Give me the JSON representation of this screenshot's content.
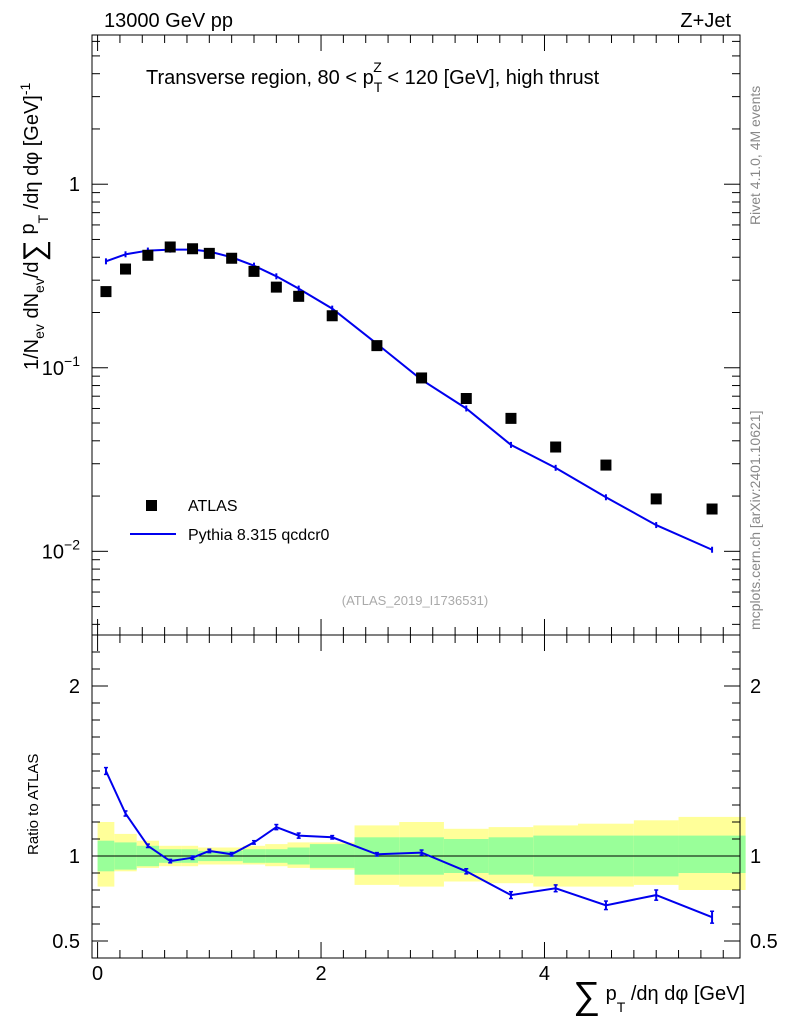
{
  "header": {
    "energy_label": "13000 GeV pp",
    "process_label": "Z+Jet"
  },
  "side_text": {
    "rivet": "Rivet 4.1.0,  4M events",
    "mcplots": "mcplots.cern.ch [arXiv:2401.10621]"
  },
  "colors": {
    "data": "#000000",
    "mc": "#0000ee",
    "band_inner": "#99ff99",
    "band_outer": "#ffff99"
  },
  "chart_data": [
    {
      "type": "scatter",
      "panel": "main",
      "title": "Transverse region, 80 < p_T^Z < 120 [GeV], high thrust",
      "title_parts": {
        "pre": "Transverse region, 80 < p",
        "sup": "Z",
        "sub": "T",
        "post": " < 120 [GeV], high thrust"
      },
      "ylabel": "1/N_ev dN_ev/d∑p_T/dη dφ [GeV]^-1",
      "ylabel_parts": {
        "a": "1/N",
        "a_sub": "ev",
        "b": " dN",
        "b_sub": "ev",
        "c": "/d",
        "sum": "∑",
        "d": " p",
        "d_sub": "T",
        "e": " /dη dφ  [GeV]",
        "e_sup": "-1"
      },
      "yscale": "log",
      "ylim": [
        0.0035,
        6.5
      ],
      "xlim": [
        -0.05,
        5.75
      ],
      "ytick_labels": [
        {
          "value": 1,
          "mant": "1",
          "exp": ""
        },
        {
          "value": 0.1,
          "mant": "10",
          "exp": "−1"
        },
        {
          "value": 0.01,
          "mant": "10",
          "exp": "−2"
        }
      ],
      "watermark": "(ATLAS_2019_I1736531)",
      "legend": [
        {
          "name": "ATLAS",
          "style": "marker"
        },
        {
          "name": "Pythia 8.315 qcdcr0",
          "style": "line"
        }
      ],
      "series": [
        {
          "name": "ATLAS",
          "x": [
            0.075,
            0.25,
            0.45,
            0.65,
            0.85,
            1.0,
            1.2,
            1.4,
            1.6,
            1.8,
            2.1,
            2.5,
            2.9,
            3.3,
            3.7,
            4.1,
            4.55,
            5.0,
            5.5
          ],
          "y": [
            0.26,
            0.345,
            0.41,
            0.455,
            0.445,
            0.42,
            0.395,
            0.335,
            0.275,
            0.245,
            0.192,
            0.132,
            0.088,
            0.068,
            0.053,
            0.037,
            0.0295,
            0.0193,
            0.017
          ]
        },
        {
          "name": "Pythia 8.315 qcdcr0",
          "x": [
            0.075,
            0.25,
            0.45,
            0.65,
            0.85,
            1.0,
            1.2,
            1.4,
            1.6,
            1.8,
            2.1,
            2.5,
            2.9,
            3.3,
            3.7,
            4.1,
            4.55,
            5.0,
            5.5
          ],
          "y": [
            0.38,
            0.415,
            0.435,
            0.44,
            0.44,
            0.43,
            0.4,
            0.36,
            0.315,
            0.27,
            0.21,
            0.135,
            0.086,
            0.06,
            0.038,
            0.0285,
            0.0197,
            0.0139,
            0.0102
          ]
        }
      ]
    },
    {
      "type": "line",
      "panel": "ratio",
      "ylabel": "Ratio to ATLAS",
      "xlabel": "∑p_T/dη dφ [GeV]",
      "xlabel_parts": {
        "sum": "∑",
        "p": " p",
        "sub": "T",
        "rest": " /dη dφ [GeV]"
      },
      "ylim": [
        0.4,
        2.3
      ],
      "xlim": [
        -0.05,
        5.75
      ],
      "ytick_labels": [
        {
          "value": 2,
          "text": "2"
        },
        {
          "value": 1,
          "text": "1"
        },
        {
          "value": 0.5,
          "text": "0.5"
        }
      ],
      "xtick_labels": [
        {
          "value": 0,
          "text": "0"
        },
        {
          "value": 2,
          "text": "2"
        },
        {
          "value": 4,
          "text": "4"
        }
      ],
      "reference_line": 1,
      "bands": {
        "edges": [
          0.0,
          0.15,
          0.35,
          0.55,
          0.75,
          0.9,
          1.1,
          1.3,
          1.5,
          1.7,
          1.9,
          2.3,
          2.7,
          3.1,
          3.5,
          3.9,
          4.3,
          4.8,
          5.2,
          5.8
        ],
        "inner_lo": [
          0.91,
          0.92,
          0.94,
          0.96,
          0.96,
          0.97,
          0.97,
          0.96,
          0.96,
          0.95,
          0.93,
          0.89,
          0.89,
          0.9,
          0.89,
          0.88,
          0.88,
          0.88,
          0.9
        ],
        "inner_hi": [
          1.09,
          1.08,
          1.06,
          1.04,
          1.04,
          1.03,
          1.03,
          1.04,
          1.04,
          1.05,
          1.07,
          1.11,
          1.11,
          1.1,
          1.11,
          1.12,
          1.12,
          1.12,
          1.12
        ],
        "outer_lo": [
          0.82,
          0.91,
          0.93,
          0.94,
          0.94,
          0.95,
          0.95,
          0.95,
          0.94,
          0.93,
          0.92,
          0.83,
          0.82,
          0.85,
          0.84,
          0.82,
          0.82,
          0.83,
          0.8
        ],
        "outer_hi": [
          1.2,
          1.13,
          1.09,
          1.06,
          1.06,
          1.05,
          1.05,
          1.06,
          1.07,
          1.08,
          1.08,
          1.18,
          1.2,
          1.16,
          1.17,
          1.18,
          1.19,
          1.21,
          1.23
        ]
      },
      "series": [
        {
          "name": "Pythia 8.315 qcdcr0 / ATLAS",
          "x": [
            0.075,
            0.25,
            0.45,
            0.65,
            0.85,
            1.0,
            1.2,
            1.4,
            1.6,
            1.8,
            2.1,
            2.5,
            2.9,
            3.3,
            3.7,
            4.1,
            4.55,
            5.0,
            5.5
          ],
          "y": [
            1.5,
            1.25,
            1.06,
            0.97,
            0.99,
            1.03,
            1.01,
            1.08,
            1.17,
            1.12,
            1.11,
            1.01,
            1.02,
            0.91,
            0.77,
            0.81,
            0.71,
            0.77,
            0.64
          ],
          "err": [
            0.02,
            0.015,
            0.01,
            0.01,
            0.01,
            0.01,
            0.01,
            0.01,
            0.015,
            0.015,
            0.01,
            0.01,
            0.015,
            0.015,
            0.02,
            0.02,
            0.025,
            0.03,
            0.035
          ]
        }
      ]
    }
  ]
}
